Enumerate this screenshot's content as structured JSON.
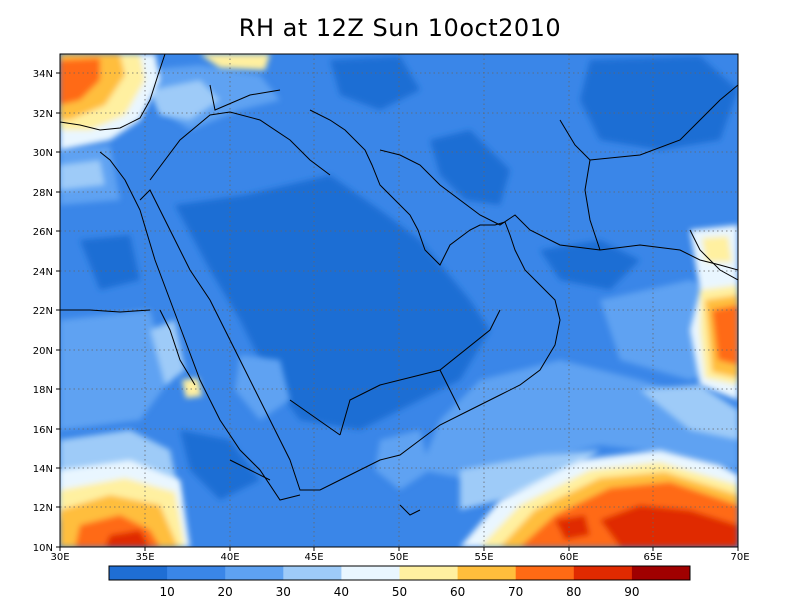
{
  "title": "RH at 12Z Sun 10oct2010",
  "axes": {
    "lon_labels": [
      "30E",
      "35E",
      "40E",
      "45E",
      "50E",
      "55E",
      "60E",
      "65E",
      "70E"
    ],
    "lat_labels": [
      "10N",
      "12N",
      "14N",
      "16N",
      "18N",
      "20N",
      "22N",
      "24N",
      "26N",
      "28N",
      "30N",
      "32N",
      "34N"
    ],
    "lon_range": [
      30,
      70
    ],
    "lat_range": [
      10,
      35
    ]
  },
  "colorbar": {
    "labels": [
      "10",
      "20",
      "30",
      "40",
      "50",
      "60",
      "70",
      "80",
      "90"
    ],
    "colors": [
      "#1f6ed4",
      "#3a86e8",
      "#5ea2f2",
      "#9ecbf8",
      "#e9f6ff",
      "#fff0a0",
      "#ffbe3c",
      "#ff6a14",
      "#e02a00",
      "#a00000"
    ]
  },
  "colors": {
    "background_fill": "#3a86e8",
    "grid": "#666666",
    "coast": "#000000"
  }
}
